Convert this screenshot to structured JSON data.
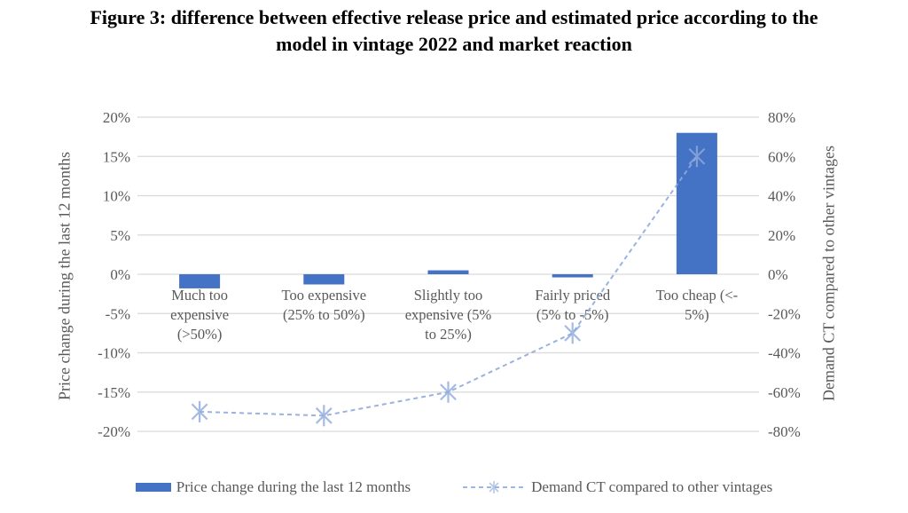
{
  "title": {
    "line1": "Figure 3: difference between effective release price and estimated price according to the",
    "line2": "model in vintage 2022 and market reaction"
  },
  "colors": {
    "bar": "#4472C4",
    "line": "#8FAADC",
    "grid": "#D9D9D9",
    "axis_text": "#595959",
    "title_text": "#000000",
    "background": "#FFFFFF"
  },
  "chart_data": {
    "type": "combo-bar-line",
    "title": "Figure 3: difference between effective release price and estimated price according to the model in vintage 2022 and market reaction",
    "grid": true,
    "legend_position": "bottom",
    "categories": [
      "Much too expensive (>50%)",
      "Too expensive (25% to 50%)",
      "Slightly too expensive (5% to 25%)",
      "Fairly priced (5% to -5%)",
      "Too cheap (<- 5%)"
    ],
    "category_lines": [
      [
        "Much too",
        "expensive",
        "(>50%)"
      ],
      [
        "Too expensive",
        "(25% to 50%)"
      ],
      [
        "Slightly too",
        "expensive (5%",
        "to 25%)"
      ],
      [
        "Fairly priced",
        "(5% to -5%)"
      ],
      [
        "Too cheap (<-",
        "5%)"
      ]
    ],
    "series": [
      {
        "name": "Price change during the last 12 months",
        "type": "bar",
        "axis": "left",
        "values": [
          -1.8,
          -1.3,
          0.5,
          -0.4,
          18
        ]
      },
      {
        "name": "Demand CT compared to other vintages",
        "type": "line",
        "axis": "right",
        "style": "dashed",
        "marker": "asterisk",
        "values": [
          -70,
          -72,
          -60,
          -30,
          60
        ]
      }
    ],
    "left_axis": {
      "label": "Price change during the last 12 months",
      "min": -20,
      "max": 20,
      "ticks": [
        {
          "v": 20,
          "label": "20%"
        },
        {
          "v": 15,
          "label": "15%"
        },
        {
          "v": 10,
          "label": "10%"
        },
        {
          "v": 5,
          "label": "5%"
        },
        {
          "v": 0,
          "label": "0%"
        },
        {
          "v": -5,
          "label": "-5%"
        },
        {
          "v": -10,
          "label": "-10%"
        },
        {
          "v": -15,
          "label": "-15%"
        },
        {
          "v": -20,
          "label": "-20%"
        }
      ]
    },
    "right_axis": {
      "label": "Demand CT compared to other vintages",
      "min": -80,
      "max": 80,
      "ticks": [
        {
          "v": 80,
          "label": "80%"
        },
        {
          "v": 60,
          "label": "60%"
        },
        {
          "v": 40,
          "label": "40%"
        },
        {
          "v": 20,
          "label": "20%"
        },
        {
          "v": 0,
          "label": "0%"
        },
        {
          "v": -20,
          "label": "-20%"
        },
        {
          "v": -40,
          "label": "-40%"
        },
        {
          "v": -60,
          "label": "-60%"
        },
        {
          "v": -80,
          "label": "-80%"
        }
      ]
    }
  }
}
